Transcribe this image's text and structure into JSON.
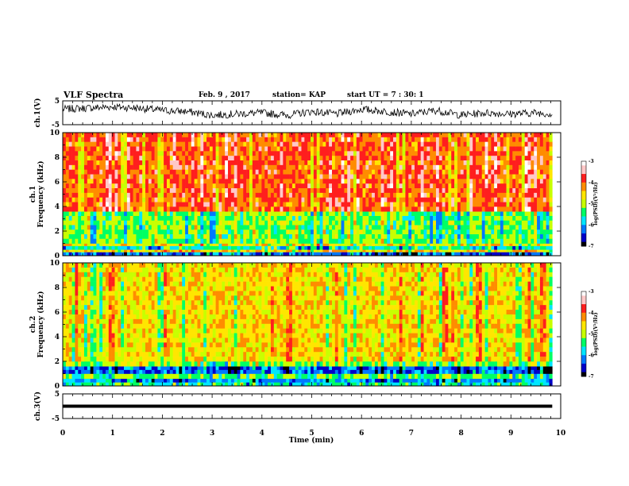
{
  "header": {
    "title": "VLF Spectra",
    "date": "Feb. 9 , 2017",
    "station": "station= KAP",
    "start": "start UT =  7 : 30: 1"
  },
  "colors": {
    "spectrum": [
      "#000000",
      "#0000c8",
      "#0078ff",
      "#00e6ff",
      "#00ff64",
      "#c8ff00",
      "#ffe600",
      "#ff8c00",
      "#ff1e1e",
      "#ffc8c8",
      "#ffffff"
    ],
    "trace": "#000000"
  },
  "chart_data": [
    {
      "type": "line",
      "panel": "ch1-waveform",
      "ylabel": "ch.1(V)",
      "ylim": [
        -5,
        5
      ],
      "yticks": [
        "5",
        "-5"
      ],
      "x": [
        0,
        0.5,
        1,
        1.5,
        2,
        2.5,
        3,
        3.5,
        4,
        4.5,
        5,
        5.5,
        6,
        6.5,
        7,
        7.5,
        8,
        8.5,
        9,
        9.5,
        9.83
      ],
      "y": [
        1.5,
        2.0,
        2.5,
        2.0,
        1.0,
        0.5,
        -1.0,
        -0.5,
        0.0,
        -1.0,
        0.5,
        -0.5,
        1.5,
        0.5,
        -0.5,
        1.0,
        -1.0,
        0.0,
        -0.5,
        0.0,
        -0.5
      ]
    },
    {
      "type": "heatmap",
      "panel": "ch1-spectrogram",
      "ylabel": "ch.1\nFrequency (kHz)",
      "ylim": [
        0,
        10
      ],
      "yticks": [
        "0",
        "2",
        "4",
        "6",
        "8",
        "10"
      ],
      "freq_bands_khz": [
        {
          "from": 0.0,
          "to": 0.3,
          "level": -6.2
        },
        {
          "from": 0.3,
          "to": 0.5,
          "level": -4.5
        },
        {
          "from": 0.5,
          "to": 0.8,
          "level": -5.6
        },
        {
          "from": 0.8,
          "to": 1.0,
          "level": -4.7
        },
        {
          "from": 1.0,
          "to": 3.6,
          "level": -5.2
        },
        {
          "from": 3.6,
          "to": 10.0,
          "level": -4.0
        }
      ],
      "colorbar": {
        "label": "log(PSD)(V²/Hz)",
        "range": [
          -7,
          -3
        ],
        "ticks": [
          "-3",
          "-4",
          "-5",
          "-6",
          "-7"
        ]
      }
    },
    {
      "type": "heatmap",
      "panel": "ch2-spectrogram",
      "ylabel": "ch.2\nFrequency (kHz)",
      "ylim": [
        0,
        10
      ],
      "yticks": [
        "0",
        "2",
        "4",
        "6",
        "8",
        "10"
      ],
      "freq_bands_khz": [
        {
          "from": 0.0,
          "to": 0.3,
          "level": -5.5
        },
        {
          "from": 0.3,
          "to": 0.6,
          "level": -6.0
        },
        {
          "from": 0.6,
          "to": 1.0,
          "level": -5.2
        },
        {
          "from": 1.0,
          "to": 1.6,
          "level": -6.3
        },
        {
          "from": 1.6,
          "to": 2.0,
          "level": -5.0
        },
        {
          "from": 2.0,
          "to": 10.0,
          "level": -4.6
        }
      ],
      "colorbar": {
        "label": "log(PSD)(V²/Hz)",
        "range": [
          -7,
          -3
        ],
        "ticks": [
          "-3",
          "-4",
          "-5",
          "-6",
          "-7"
        ]
      }
    },
    {
      "type": "line",
      "panel": "ch3-waveform",
      "ylabel": "ch.3(V)",
      "ylim": [
        -5,
        5
      ],
      "yticks": [
        "5",
        "-5"
      ],
      "x": [
        0,
        9.83
      ],
      "y": [
        0,
        0
      ]
    }
  ],
  "xaxis": {
    "label": "Time (min)",
    "xlim": [
      0,
      10
    ],
    "ticks": [
      "0",
      "1",
      "2",
      "3",
      "4",
      "5",
      "6",
      "7",
      "8",
      "9",
      "10"
    ],
    "data_end": 9.83
  }
}
